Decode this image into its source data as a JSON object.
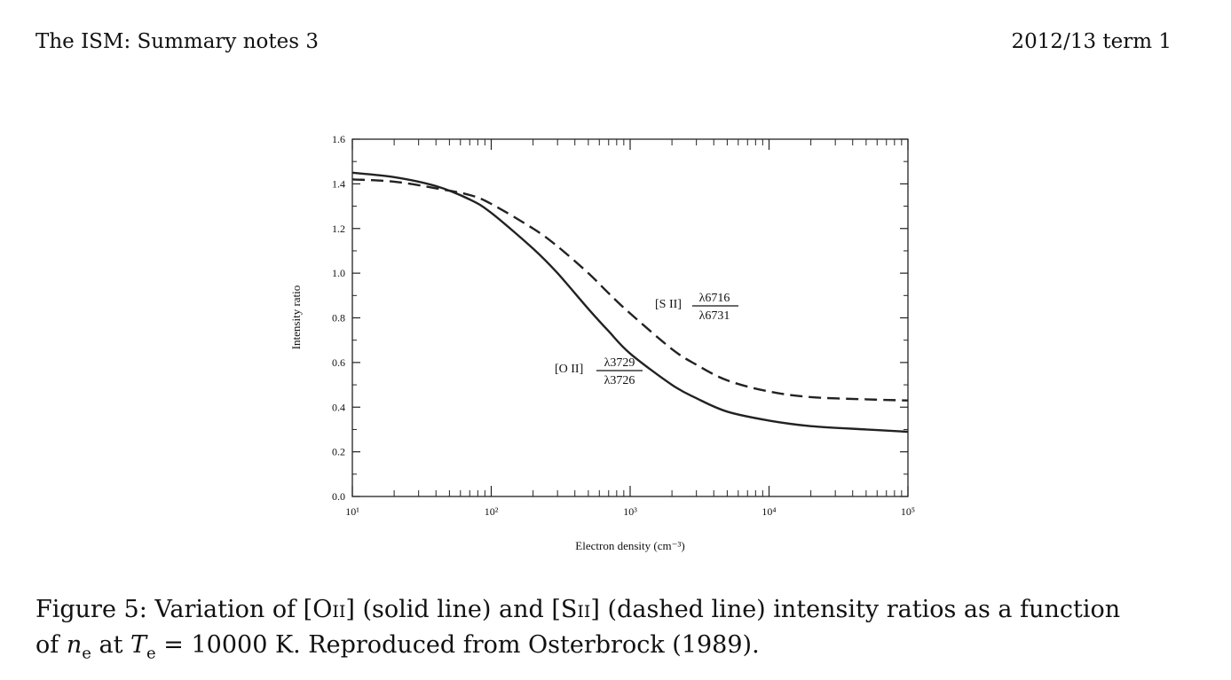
{
  "header": {
    "left": "The ISM: Summary notes 3",
    "right": "2012/13 term 1"
  },
  "chart_data": {
    "type": "line",
    "xlabel": "Electron density (cm⁻³)",
    "ylabel": "Intensity ratio",
    "xscale": "log",
    "xlim": [
      10,
      100000
    ],
    "ylim": [
      0,
      1.6
    ],
    "x_ticks": [
      "10¹",
      "10²",
      "10³",
      "10⁴",
      "10⁵"
    ],
    "y_ticks": [
      "0.0",
      "0.2",
      "0.4",
      "0.6",
      "0.8",
      "1.0",
      "1.2",
      "1.4",
      "1.6"
    ],
    "series": [
      {
        "name": "[O II] λ3729/λ3726",
        "style": "solid",
        "label_ion": "[O II]",
        "label_num": "λ3729",
        "label_den": "λ3726",
        "x": [
          10,
          20,
          40,
          70,
          100,
          200,
          300,
          500,
          700,
          1000,
          2000,
          3000,
          5000,
          10000,
          20000,
          50000,
          100000
        ],
        "y": [
          1.45,
          1.43,
          1.39,
          1.33,
          1.27,
          1.11,
          1.0,
          0.84,
          0.74,
          0.64,
          0.5,
          0.44,
          0.38,
          0.34,
          0.315,
          0.3,
          0.29
        ]
      },
      {
        "name": "[S II] λ6716/λ6731",
        "style": "dashed",
        "label_ion": "[S II]",
        "label_num": "λ6716",
        "label_den": "λ6731",
        "x": [
          10,
          20,
          40,
          70,
          100,
          200,
          300,
          500,
          700,
          1000,
          2000,
          3000,
          5000,
          10000,
          20000,
          50000,
          100000
        ],
        "y": [
          1.42,
          1.41,
          1.38,
          1.35,
          1.31,
          1.2,
          1.12,
          1.0,
          0.91,
          0.82,
          0.66,
          0.59,
          0.52,
          0.47,
          0.445,
          0.435,
          0.43
        ]
      }
    ]
  },
  "caption": {
    "p1": "Figure 5: Variation of [O",
    "ion1": "ii",
    "p2": "] (solid line) and [S",
    "ion2": "ii",
    "p3": "] (dashed line) intensity ratios as a function",
    "p4": "of",
    "ne_sym": "n",
    "ne_sub": "e",
    "p5": "at",
    "te_sym": "T",
    "te_sub": "e",
    "p6": "= 10000 K. Reproduced from Osterbrock (1989)."
  }
}
